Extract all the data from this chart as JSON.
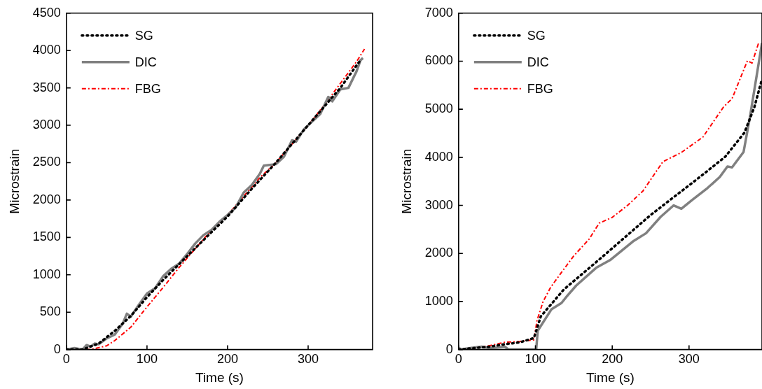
{
  "chart_data": [
    {
      "type": "line",
      "xlabel": "Time (s)",
      "ylabel": "Microstrain",
      "xlim": [
        0,
        380
      ],
      "xticks": [
        0,
        100,
        200,
        300
      ],
      "ylim": [
        0,
        4500
      ],
      "yticks": [
        0,
        500,
        1000,
        1500,
        2000,
        2500,
        3000,
        3500,
        4000,
        4500
      ],
      "grid": false,
      "legend": "top left",
      "marker": "none",
      "series": [
        {
          "name": "SG",
          "color": "#000000",
          "line_style": "dotted",
          "x": [
            0,
            20,
            40,
            60,
            80,
            100,
            120,
            150,
            180,
            200,
            230,
            260,
            280,
            300,
            320,
            340,
            360,
            365
          ],
          "values": [
            0,
            0,
            80,
            250,
            450,
            700,
            930,
            1250,
            1570,
            1780,
            2150,
            2500,
            2750,
            3000,
            3250,
            3500,
            3800,
            3870
          ]
        },
        {
          "name": "DIC",
          "color": "#808080",
          "line_style": "solid",
          "x": [
            0,
            10,
            20,
            25,
            30,
            35,
            40,
            50,
            60,
            70,
            75,
            80,
            90,
            100,
            110,
            120,
            130,
            140,
            150,
            160,
            170,
            180,
            190,
            200,
            210,
            220,
            230,
            240,
            245,
            260,
            270,
            280,
            285,
            295,
            305,
            315,
            325,
            330,
            340,
            350,
            360,
            365,
            368
          ],
          "values": [
            0,
            20,
            0,
            60,
            40,
            80,
            70,
            150,
            200,
            350,
            480,
            440,
            600,
            750,
            820,
            980,
            1080,
            1150,
            1280,
            1420,
            1530,
            1600,
            1710,
            1800,
            1900,
            2100,
            2200,
            2350,
            2460,
            2480,
            2580,
            2800,
            2780,
            2950,
            3050,
            3150,
            3380,
            3320,
            3480,
            3500,
            3720,
            3870,
            3900
          ]
        },
        {
          "name": "FBG",
          "color": "#ff0000",
          "line_style": "dashdot",
          "x": [
            0,
            30,
            50,
            60,
            80,
            100,
            120,
            140,
            160,
            180,
            200,
            220,
            240,
            260,
            280,
            300,
            320,
            340,
            360,
            370
          ],
          "values": [
            0,
            0,
            50,
            120,
            300,
            570,
            830,
            1100,
            1350,
            1600,
            1800,
            2050,
            2300,
            2500,
            2750,
            3000,
            3270,
            3560,
            3850,
            4020
          ]
        }
      ]
    },
    {
      "type": "line",
      "xlabel": "Time (s)",
      "ylabel": "Microstrain",
      "xlim": [
        0,
        395
      ],
      "xticks": [
        0,
        100,
        200,
        300
      ],
      "ylim": [
        0,
        7000
      ],
      "yticks": [
        0,
        1000,
        2000,
        3000,
        4000,
        5000,
        6000,
        7000
      ],
      "grid": false,
      "legend": "top left",
      "marker": "none",
      "series": [
        {
          "name": "SG",
          "color": "#000000",
          "line_style": "dotted",
          "x": [
            0,
            20,
            40,
            60,
            80,
            98,
            107,
            137,
            185,
            250,
            314,
            347,
            372,
            385,
            395
          ],
          "values": [
            0,
            30,
            60,
            110,
            150,
            240,
            690,
            1250,
            1900,
            2800,
            3590,
            4010,
            4510,
            5040,
            5630
          ]
        },
        {
          "name": "DIC",
          "color": "#808080",
          "line_style": "solid",
          "x": [
            0,
            5,
            10,
            20,
            30,
            40,
            50,
            60,
            65,
            100,
            101,
            103,
            121,
            134,
            141,
            153,
            179,
            198,
            227,
            244,
            263,
            280,
            290,
            304,
            324,
            340,
            350,
            356,
            371,
            379,
            395
          ],
          "values": [
            30,
            0,
            20,
            40,
            60,
            30,
            40,
            60,
            0,
            0,
            0,
            390,
            840,
            970,
            1110,
            1330,
            1700,
            1870,
            2250,
            2420,
            2760,
            3000,
            2930,
            3110,
            3360,
            3590,
            3810,
            3790,
            4110,
            4810,
            6380
          ]
        },
        {
          "name": "FBG",
          "color": "#ff0000",
          "line_style": "dashdot",
          "x": [
            0,
            20,
            40,
            60,
            80,
            98,
            102,
            110,
            120,
            136,
            150,
            170,
            183,
            200,
            220,
            240,
            266,
            290,
            318,
            345,
            356,
            376,
            382,
            391
          ],
          "values": [
            0,
            30,
            80,
            150,
            170,
            200,
            600,
            1000,
            1300,
            1650,
            1950,
            2300,
            2630,
            2750,
            3000,
            3300,
            3910,
            4100,
            4420,
            5050,
            5220,
            6010,
            5960,
            6400
          ]
        }
      ]
    }
  ]
}
